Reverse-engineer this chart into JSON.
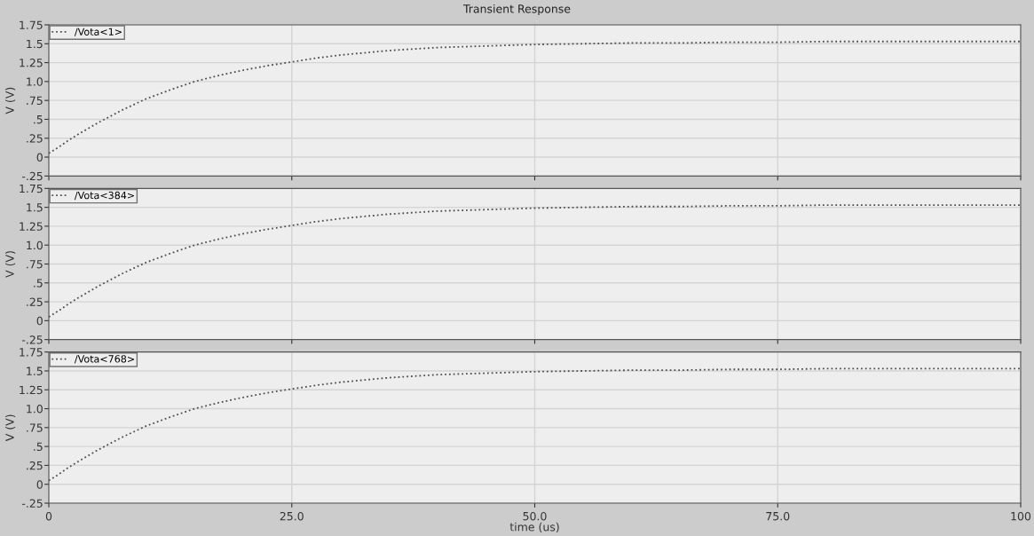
{
  "chart_data": [
    {
      "type": "line",
      "title": "Transient Response",
      "ylabel": "V (V)",
      "x": [
        0,
        1,
        2,
        3,
        5,
        7.5,
        10,
        12.5,
        15,
        17.5,
        20,
        22.5,
        25,
        27.5,
        30,
        35,
        40,
        45,
        50,
        55,
        60,
        65,
        70,
        75,
        80,
        85,
        90,
        95,
        100
      ],
      "series": [
        {
          "name": "/Vota<1>",
          "color": "#505050",
          "values": [
            0.05,
            0.13,
            0.22,
            0.3,
            0.45,
            0.62,
            0.77,
            0.89,
            1.0,
            1.08,
            1.15,
            1.21,
            1.26,
            1.31,
            1.35,
            1.41,
            1.45,
            1.47,
            1.49,
            1.5,
            1.51,
            1.51,
            1.52,
            1.52,
            1.53,
            1.53,
            1.53,
            1.53,
            1.53
          ]
        }
      ],
      "xlim": [
        0,
        100
      ],
      "xticks": [
        {
          "value": 0,
          "label": null
        },
        {
          "value": 25,
          "label": null
        },
        {
          "value": 50,
          "label": null
        },
        {
          "value": 75,
          "label": null
        },
        {
          "value": 100,
          "label": null
        }
      ],
      "ylim": [
        -0.25,
        1.75
      ],
      "yticks": [
        {
          "value": -0.25,
          "label": "-.25"
        },
        {
          "value": 0,
          "label": "0"
        },
        {
          "value": 0.25,
          "label": ".25"
        },
        {
          "value": 0.5,
          "label": ".5"
        },
        {
          "value": 0.75,
          "label": ".75"
        },
        {
          "value": 1.0,
          "label": "1.0"
        },
        {
          "value": 1.25,
          "label": "1.25"
        },
        {
          "value": 1.5,
          "label": "1.5"
        },
        {
          "value": 1.75,
          "label": "1.75"
        }
      ],
      "tick_labels": "y",
      "grid": true,
      "legend": "top left",
      "marker": "none",
      "line_style": "dotted"
    },
    {
      "type": "line",
      "ylabel": "V (V)",
      "x": [
        0,
        1,
        2,
        3,
        5,
        7.5,
        10,
        12.5,
        15,
        17.5,
        20,
        22.5,
        25,
        27.5,
        30,
        35,
        40,
        45,
        50,
        55,
        60,
        65,
        70,
        75,
        80,
        85,
        90,
        95,
        100
      ],
      "series": [
        {
          "name": "/Vota<384>",
          "color": "#505050",
          "values": [
            0.05,
            0.13,
            0.22,
            0.3,
            0.45,
            0.62,
            0.77,
            0.89,
            1.0,
            1.08,
            1.15,
            1.21,
            1.26,
            1.31,
            1.35,
            1.41,
            1.45,
            1.47,
            1.49,
            1.5,
            1.51,
            1.51,
            1.52,
            1.52,
            1.53,
            1.53,
            1.53,
            1.53,
            1.53
          ]
        }
      ],
      "xlim": [
        0,
        100
      ],
      "xticks": [
        {
          "value": 0,
          "label": null
        },
        {
          "value": 25,
          "label": null
        },
        {
          "value": 50,
          "label": null
        },
        {
          "value": 75,
          "label": null
        },
        {
          "value": 100,
          "label": null
        }
      ],
      "ylim": [
        -0.25,
        1.75
      ],
      "yticks": [
        {
          "value": -0.25,
          "label": "-.25"
        },
        {
          "value": 0,
          "label": "0"
        },
        {
          "value": 0.25,
          "label": ".25"
        },
        {
          "value": 0.5,
          "label": ".5"
        },
        {
          "value": 0.75,
          "label": ".75"
        },
        {
          "value": 1.0,
          "label": "1.0"
        },
        {
          "value": 1.25,
          "label": "1.25"
        },
        {
          "value": 1.5,
          "label": "1.5"
        },
        {
          "value": 1.75,
          "label": "1.75"
        }
      ],
      "tick_labels": "y",
      "grid": true,
      "legend": "top left",
      "marker": "none",
      "line_style": "dotted"
    },
    {
      "type": "line",
      "ylabel": "V (V)",
      "xlabel": "time (us)",
      "x": [
        0,
        1,
        2,
        3,
        5,
        7.5,
        10,
        12.5,
        15,
        17.5,
        20,
        22.5,
        25,
        27.5,
        30,
        35,
        40,
        45,
        50,
        55,
        60,
        65,
        70,
        75,
        80,
        85,
        90,
        95,
        100
      ],
      "series": [
        {
          "name": "/Vota<768>",
          "color": "#505050",
          "values": [
            0.05,
            0.13,
            0.22,
            0.3,
            0.45,
            0.62,
            0.77,
            0.89,
            1.0,
            1.08,
            1.15,
            1.21,
            1.26,
            1.31,
            1.35,
            1.41,
            1.45,
            1.47,
            1.49,
            1.5,
            1.51,
            1.51,
            1.52,
            1.52,
            1.53,
            1.53,
            1.53,
            1.53,
            1.53
          ]
        }
      ],
      "xlim": [
        0,
        100
      ],
      "xticks": [
        {
          "value": 0,
          "label": "0"
        },
        {
          "value": 25,
          "label": "25.0"
        },
        {
          "value": 50,
          "label": "50.0"
        },
        {
          "value": 75,
          "label": "75.0"
        },
        {
          "value": 100,
          "label": "100"
        }
      ],
      "ylim": [
        -0.25,
        1.75
      ],
      "yticks": [
        {
          "value": -0.25,
          "label": "-.25"
        },
        {
          "value": 0,
          "label": "0"
        },
        {
          "value": 0.25,
          "label": ".25"
        },
        {
          "value": 0.5,
          "label": ".5"
        },
        {
          "value": 0.75,
          "label": ".75"
        },
        {
          "value": 1.0,
          "label": "1.0"
        },
        {
          "value": 1.25,
          "label": "1.25"
        },
        {
          "value": 1.5,
          "label": "1.5"
        },
        {
          "value": 1.75,
          "label": "1.75"
        }
      ],
      "grid": true,
      "legend": "top left",
      "marker": "none",
      "line_style": "dotted"
    }
  ]
}
